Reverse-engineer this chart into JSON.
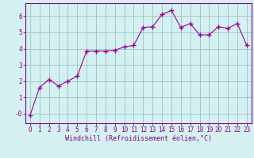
{
  "x": [
    0,
    1,
    2,
    3,
    4,
    5,
    6,
    7,
    8,
    9,
    10,
    11,
    12,
    13,
    14,
    15,
    16,
    17,
    18,
    19,
    20,
    21,
    22,
    23
  ],
  "y": [
    -0.1,
    1.6,
    2.1,
    1.7,
    2.0,
    2.3,
    3.85,
    3.85,
    3.85,
    3.9,
    4.1,
    4.2,
    5.3,
    5.35,
    6.1,
    6.35,
    5.3,
    5.55,
    4.85,
    4.85,
    5.35,
    5.25,
    5.55,
    4.2
  ],
  "line_color": "#990099",
  "marker": "+",
  "marker_size": 4,
  "marker_lw": 1.0,
  "line_width": 0.8,
  "bg_color": "#d4f0f0",
  "grid_color": "#a0c8c8",
  "xlabel": "Windchill (Refroidissement éolien,°C)",
  "xlabel_color": "#880088",
  "tick_color": "#880088",
  "spine_color": "#880088",
  "xlim": [
    -0.5,
    23.5
  ],
  "ylim": [
    -0.6,
    6.8
  ],
  "yticks": [
    0,
    1,
    2,
    3,
    4,
    5,
    6
  ],
  "ytick_labels": [
    "-0",
    "1",
    "2",
    "3",
    "4",
    "5",
    "6"
  ],
  "xticks": [
    0,
    1,
    2,
    3,
    4,
    5,
    6,
    7,
    8,
    9,
    10,
    11,
    12,
    13,
    14,
    15,
    16,
    17,
    18,
    19,
    20,
    21,
    22,
    23
  ],
  "tick_fontsize": 5.5,
  "xlabel_fontsize": 6.0
}
